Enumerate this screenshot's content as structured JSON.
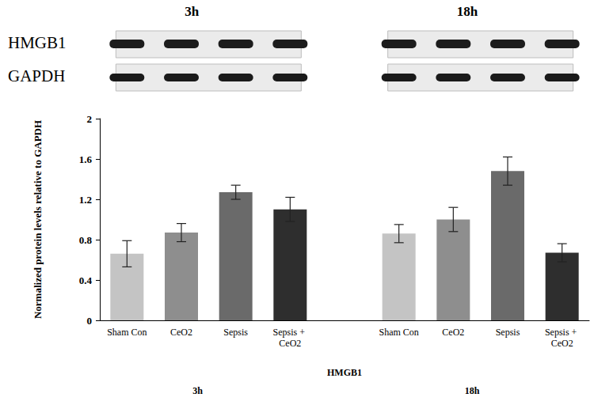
{
  "chart_data": {
    "type": "bar",
    "y_label": "Normalized protein levels relative to GAPDH",
    "x_label": "HMGB1",
    "group_labels": [
      "3h",
      "18h"
    ],
    "blot_labels": {
      "times": [
        "3h",
        "18h"
      ],
      "proteins": [
        "HMGB1",
        "GAPDH"
      ]
    },
    "categories": [
      "Sham Con",
      "CeO2",
      "Sepsis",
      "Sepsis + CeO2",
      null,
      "Sham Con",
      "CeO2",
      "Sepsis",
      "Sepsis + CeO2"
    ],
    "values": [
      0.66,
      0.87,
      1.27,
      1.1,
      null,
      0.86,
      1.0,
      1.48,
      0.67
    ],
    "errors": [
      0.13,
      0.09,
      0.07,
      0.12,
      null,
      0.09,
      0.12,
      0.14,
      0.09
    ],
    "colors": [
      "#c4c4c4",
      "#8e8e8e",
      "#6a6a6a",
      "#2e2e2e",
      null,
      "#c4c4c4",
      "#8e8e8e",
      "#6a6a6a",
      "#2e2e2e"
    ],
    "ylim": [
      0,
      2
    ],
    "yticks": [
      0,
      0.4,
      0.8,
      1.2,
      1.6,
      2
    ],
    "grid": false
  }
}
